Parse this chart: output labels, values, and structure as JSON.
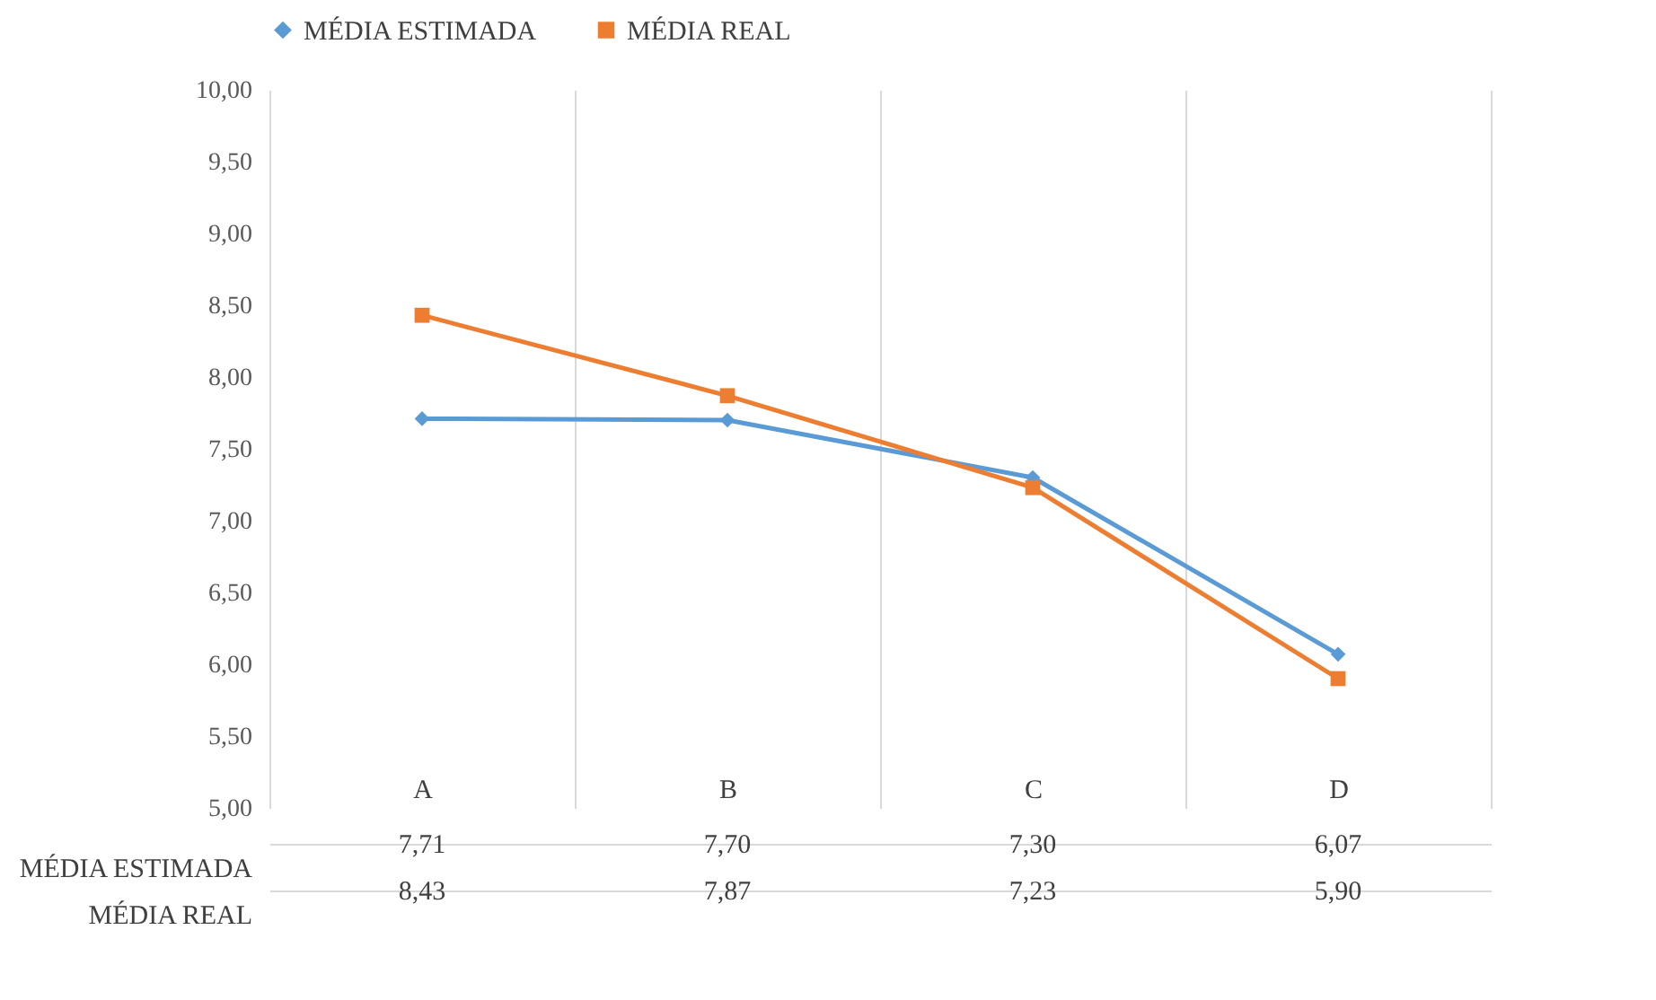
{
  "chart_data": {
    "type": "line",
    "categories": [
      "A",
      "B",
      "C",
      "D"
    ],
    "series": [
      {
        "name": "MÉDIA ESTIMADA",
        "color": "#5b9bd5",
        "marker": "diamond",
        "values": [
          7.71,
          7.7,
          7.3,
          6.07
        ],
        "value_labels": [
          "7,71",
          "7,70",
          "7,30",
          "6,07"
        ]
      },
      {
        "name": "MÉDIA REAL",
        "color": "#ed7d31",
        "marker": "square",
        "values": [
          8.43,
          7.87,
          7.23,
          5.9
        ],
        "value_labels": [
          "8,43",
          "7,87",
          "7,23",
          "5,90"
        ]
      }
    ],
    "ylim": [
      5,
      10
    ],
    "yticks": [
      {
        "value": 5,
        "label": "5,00"
      },
      {
        "value": 5.5,
        "label": "5,50"
      },
      {
        "value": 6,
        "label": "6,00"
      },
      {
        "value": 6.5,
        "label": "6,50"
      },
      {
        "value": 7,
        "label": "7,00"
      },
      {
        "value": 7.5,
        "label": "7,50"
      },
      {
        "value": 8,
        "label": "8,00"
      },
      {
        "value": 8.5,
        "label": "8,50"
      },
      {
        "value": 9,
        "label": "9,00"
      },
      {
        "value": 9.5,
        "label": "9,50"
      },
      {
        "value": 10,
        "label": "10,00"
      }
    ],
    "grid": "x",
    "legend": "top",
    "line_style": "solid"
  }
}
